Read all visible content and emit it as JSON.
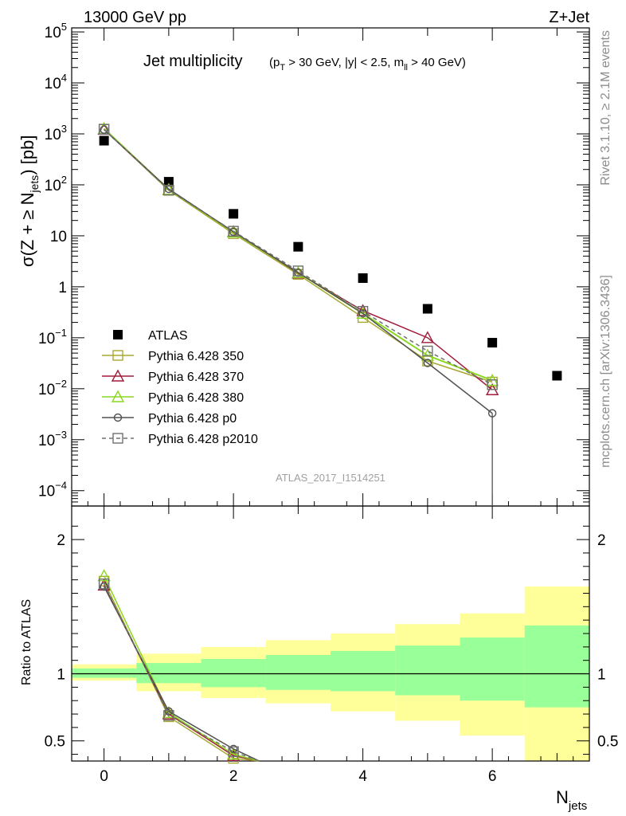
{
  "header": {
    "energy": "13000 GeV pp",
    "process": "Z+Jet"
  },
  "side": {
    "rivet": "Rivet 3.1.10, ≥ 2.1M events",
    "mcplots": "mcplots.cern.ch [arXiv:1306.3436]"
  },
  "analysis": "ATLAS_2017_I1514251",
  "chart_data": [
    {
      "type": "scatter",
      "title": "Jet multiplicity",
      "title_sub": "(p_T > 30 GeV, |y| < 2.5, m_ll > 40 GeV)",
      "xlabel": "N_jets",
      "ylabel": "σ(Z + ≥ N_jets) [pb]",
      "yscale": "log",
      "xlim": [
        -0.5,
        7.5
      ],
      "ylim": [
        5e-05,
        120000
      ],
      "x_ticks": [
        "0",
        "2",
        "4",
        "6"
      ],
      "y_ticks": [
        "10^-4",
        "10^-3",
        "10^-2",
        "10^-1",
        "1",
        "10",
        "10^2",
        "10^3",
        "10^4",
        "10^5"
      ],
      "legend_position": "bottom-left",
      "series": [
        {
          "name": "ATLAS",
          "color": "#000000",
          "marker": "square-filled",
          "x": [
            0,
            1,
            2,
            3,
            4,
            5,
            6,
            7
          ],
          "y": [
            735,
            115,
            27,
            6.1,
            1.48,
            0.37,
            0.08,
            0.018
          ]
        },
        {
          "name": "Pythia 6.428 350",
          "color": "#a8a832",
          "marker": "square-open",
          "x": [
            0,
            1,
            2,
            3,
            4,
            5,
            6
          ],
          "y": [
            1240,
            78,
            11,
            1.75,
            0.25,
            0.035,
            0.0135
          ]
        },
        {
          "name": "Pythia 6.428 370",
          "color": "#a01c3a",
          "marker": "triangle-open",
          "x": [
            0,
            1,
            2,
            3,
            4,
            5,
            6
          ],
          "y": [
            1220,
            80,
            12,
            1.85,
            0.34,
            0.1,
            0.0095
          ]
        },
        {
          "name": "Pythia 6.428 380",
          "color": "#8ad81e",
          "marker": "triangle-open",
          "x": [
            0,
            1,
            2,
            3,
            4,
            5,
            6
          ],
          "y": [
            1270,
            81,
            11.8,
            1.9,
            0.3,
            0.045,
            0.0145
          ]
        },
        {
          "name": "Pythia 6.428 p0",
          "color": "#505050",
          "marker": "circle-open",
          "x": [
            0,
            1,
            2,
            3,
            4,
            5,
            6
          ],
          "y": [
            1210,
            83,
            12,
            1.9,
            0.3,
            0.032,
            0.0033
          ]
        },
        {
          "name": "Pythia 6.428 p2010",
          "color": "#707070",
          "marker": "square-open",
          "dashed": true,
          "x": [
            0,
            1,
            2,
            3,
            4,
            5,
            6
          ],
          "y": [
            1230,
            79,
            12.3,
            2.05,
            0.33,
            0.055,
            0.012
          ]
        }
      ]
    },
    {
      "type": "line",
      "ylabel": "Ratio to ATLAS",
      "xlim": [
        -0.5,
        7.5
      ],
      "ylim": [
        0.35,
        2.25
      ],
      "y_ticks": [
        "0.5",
        "1",
        "2"
      ],
      "x_ticks": [
        "0",
        "2",
        "4",
        "6"
      ],
      "reference": 1,
      "bands": {
        "x_edges": [
          -0.5,
          0.5,
          1.5,
          2.5,
          3.5,
          4.5,
          5.5,
          6.5,
          7.5
        ],
        "green": [
          [
            0.97,
            1.04
          ],
          [
            0.93,
            1.08
          ],
          [
            0.9,
            1.11
          ],
          [
            0.88,
            1.14
          ],
          [
            0.87,
            1.17
          ],
          [
            0.84,
            1.21
          ],
          [
            0.8,
            1.27
          ],
          [
            0.75,
            1.36
          ]
        ],
        "yellow": [
          [
            0.95,
            1.07
          ],
          [
            0.87,
            1.15
          ],
          [
            0.82,
            1.2
          ],
          [
            0.78,
            1.25
          ],
          [
            0.72,
            1.3
          ],
          [
            0.65,
            1.37
          ],
          [
            0.54,
            1.45
          ],
          [
            0.35,
            1.65
          ]
        ]
      },
      "series": [
        {
          "name": "Pythia 6.428 350",
          "x": [
            0,
            1,
            2,
            2.4
          ],
          "y": [
            1.69,
            0.68,
            0.37,
            0.25
          ]
        },
        {
          "name": "Pythia 6.428 370",
          "x": [
            0,
            1,
            2,
            2.4
          ],
          "y": [
            1.66,
            0.7,
            0.39,
            0.27
          ]
        },
        {
          "name": "Pythia 6.428 380",
          "x": [
            0,
            1,
            2,
            2.4
          ],
          "y": [
            1.73,
            0.71,
            0.4,
            0.28
          ]
        },
        {
          "name": "Pythia 6.428 p0",
          "x": [
            0,
            1,
            2,
            2.4
          ],
          "y": [
            1.65,
            0.72,
            0.44,
            0.31
          ]
        },
        {
          "name": "Pythia 6.428 p2010",
          "x": [
            0,
            1,
            2,
            2.4
          ],
          "y": [
            1.67,
            0.69,
            0.42,
            0.3
          ]
        }
      ]
    }
  ]
}
